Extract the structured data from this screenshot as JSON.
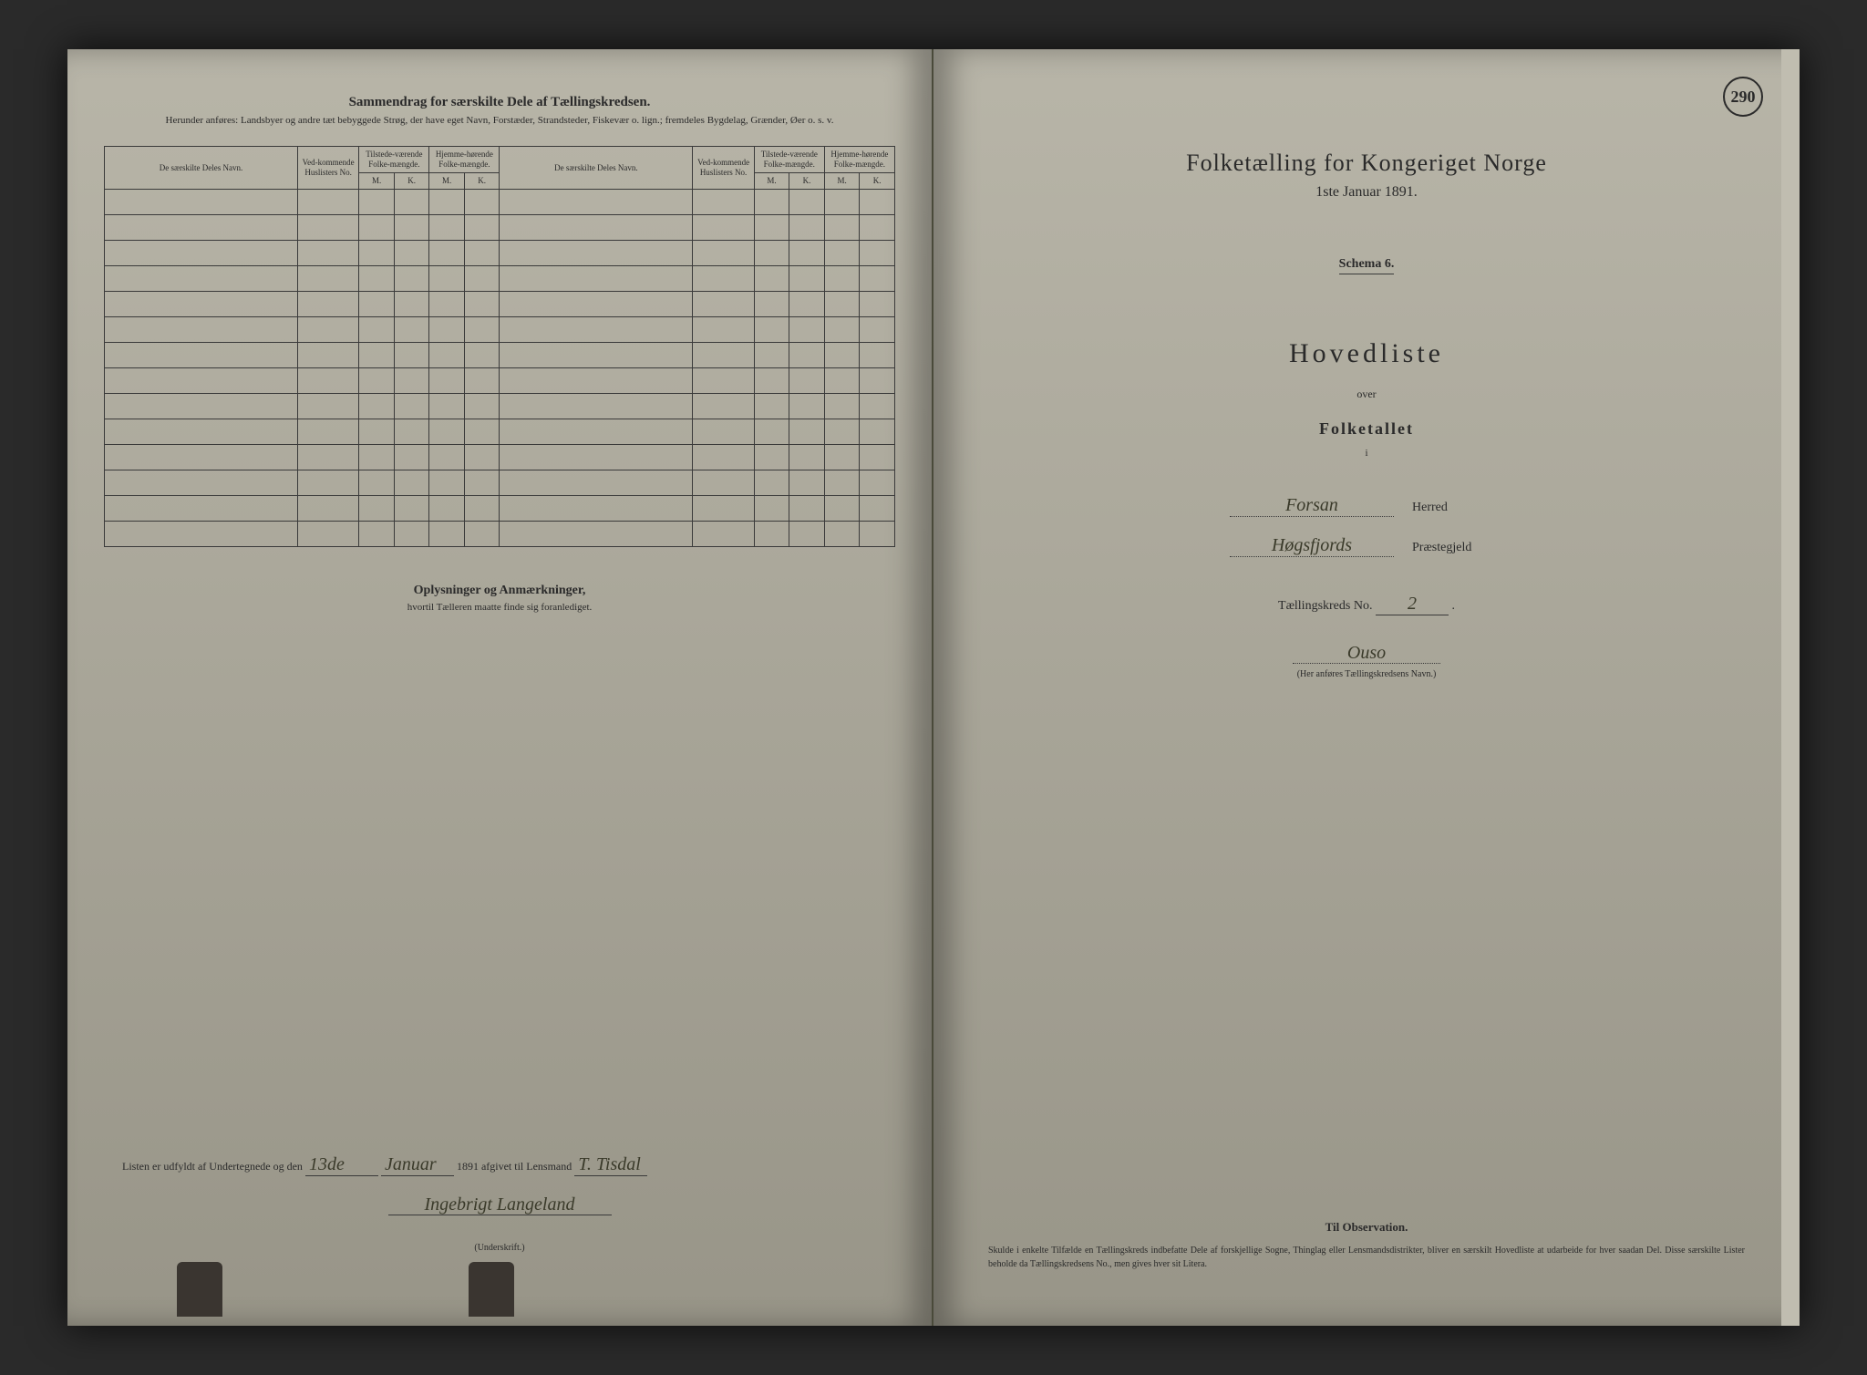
{
  "colors": {
    "paper": "#a8a598",
    "ink": "#2a2a2a",
    "background": "#2a2a2a",
    "handwriting": "#3a3a2a"
  },
  "leftPage": {
    "sectionTitle": "Sammendrag for særskilte Dele af Tællingskredsen.",
    "sectionSubtitle": "Herunder anføres: Landsbyer og andre tæt bebyggede Strøg, der have eget Navn, Forstæder, Strandsteder, Fiskevær o. lign.; fremdeles Bygdelag, Grænder, Øer o. s. v.",
    "tableHeaders": {
      "col1": "De særskilte Deles Navn.",
      "col2": "Ved-kommende Huslisters No.",
      "col3": "Tilstede-værende Folke-mængde.",
      "col4": "Hjemme-hørende Folke-mængde.",
      "col5": "De særskilte Deles Navn.",
      "col6": "Ved-kommende Huslisters No.",
      "col7": "Tilstede-værende Folke-mængde.",
      "col8": "Hjemme-hørende Folke-mængde.",
      "subM": "M.",
      "subK": "K."
    },
    "rowCount": 14,
    "notesTitle": "Oplysninger og Anmærkninger,",
    "notesSubtitle": "hvortil Tælleren maatte finde sig foranlediget.",
    "signaturePrefix": "Listen er udfyldt af Undertegnede og den",
    "signatureDay": "13de",
    "signatureMonth": "Januar",
    "signatureYear": "1891 afgivet til Lensmand",
    "signatureLensmand": "T. Tisdal",
    "signatureName": "Ingebrigt Langeland",
    "signatureLabel": "(Underskrift.)"
  },
  "rightPage": {
    "pageNumber": "290",
    "mainTitle": "Folketælling for Kongeriget Norge",
    "date": "1ste Januar 1891.",
    "schema": "Schema 6.",
    "hovedliste": "Hovedliste",
    "over": "over",
    "folketallet": "Folketallet",
    "smallI": "i",
    "herredValue": "Forsan",
    "herredLabel": "Herred",
    "prestegjeldValue": "Høgsfjords",
    "prestegjeldLabel": "Præstegjeld",
    "kredsPrefix": "Tællingskreds No.",
    "kredsNo": "2",
    "kredsName": "Ouso",
    "kredsCaption": "(Her anføres Tællingskredsens Navn.)",
    "obsTitle": "Til Observation.",
    "obsText": "Skulde i enkelte Tilfælde en Tællingskreds indbefatte Dele af forskjellige Sogne, Thinglag eller Lensmandsdistrikter, bliver en særskilt Hovedliste at udarbeide for hver saadan Del. Disse særskilte Lister beholde da Tællingskredsens No., men gives hver sit Litera."
  }
}
